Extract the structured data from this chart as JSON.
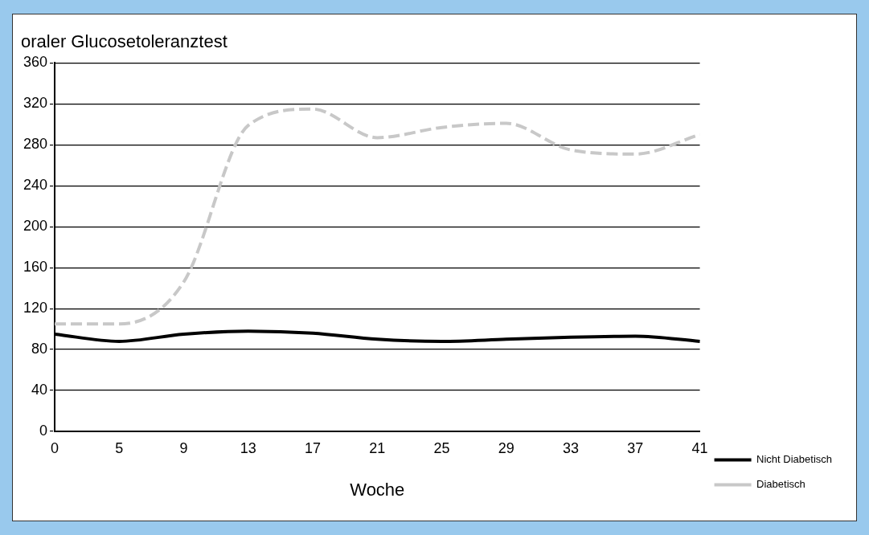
{
  "chart_data": {
    "type": "line",
    "title": "oraler Glucosetoleranztest",
    "xlabel": "Woche",
    "categories": [
      "0",
      "5",
      "9",
      "13",
      "17",
      "21",
      "25",
      "29",
      "33",
      "37",
      "41"
    ],
    "series": [
      {
        "name": "Nicht Diabetisch",
        "color": "#000000",
        "line_style": "solid",
        "values": [
          95,
          88,
          95,
          98,
          96,
          90,
          88,
          90,
          92,
          93,
          88
        ]
      },
      {
        "name": "Diabetisch",
        "color": "#c8c8c8",
        "line_style": "dashed",
        "values": [
          105,
          105,
          146,
          299,
          315,
          287,
          297,
          301,
          275,
          271,
          290
        ]
      }
    ],
    "ylim": [
      0,
      360
    ],
    "yticks": [
      0,
      40,
      80,
      120,
      160,
      200,
      240,
      280,
      320,
      360
    ],
    "grid": "y",
    "legend": "right",
    "marker": "none"
  }
}
